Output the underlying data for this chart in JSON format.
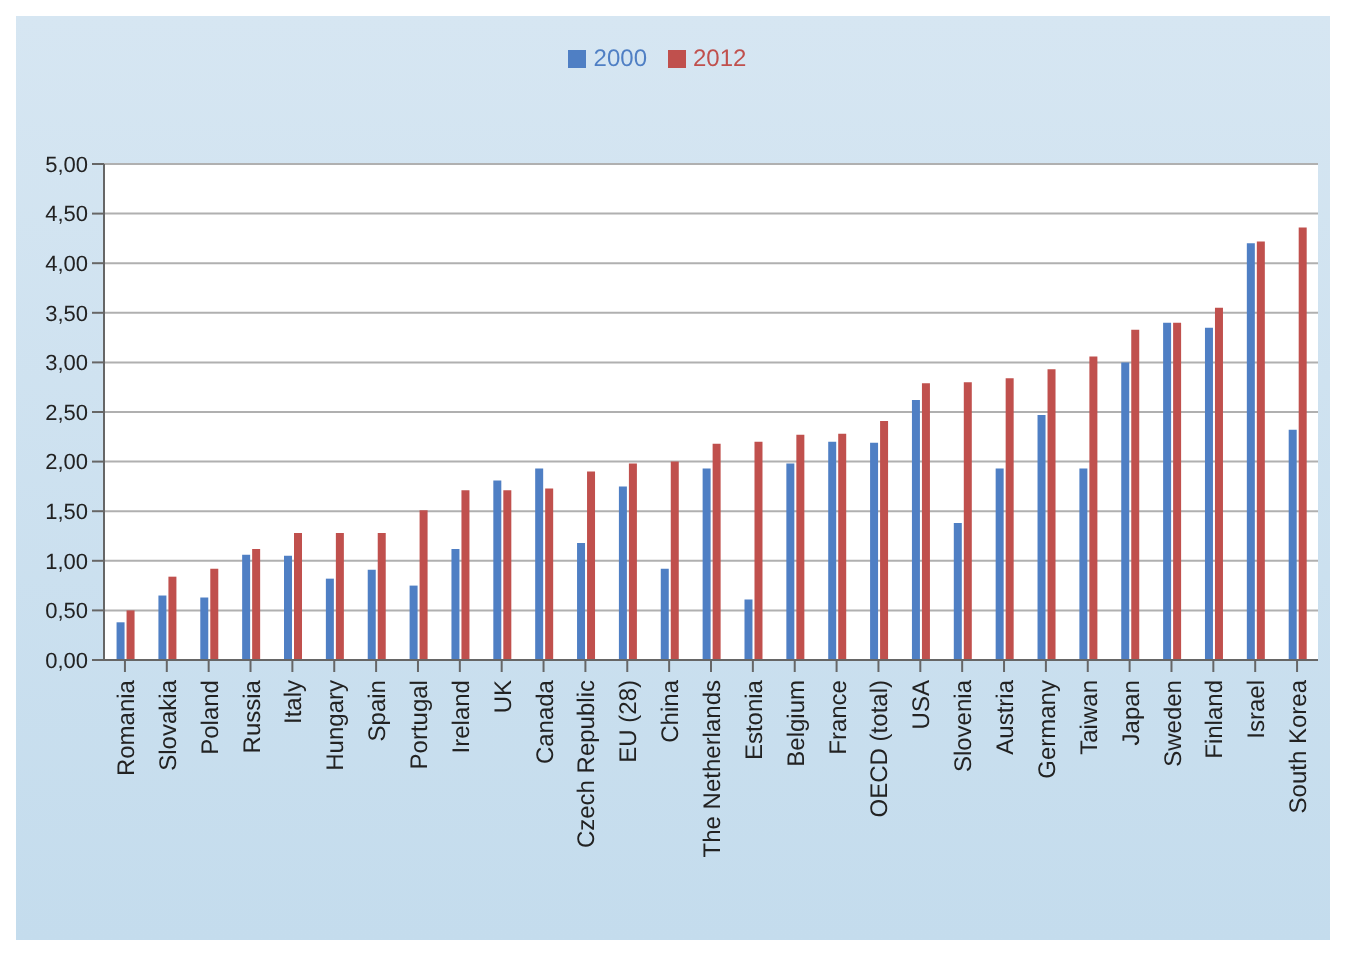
{
  "chart_data": {
    "type": "bar",
    "categories": [
      "Romania",
      "Slovakia",
      "Poland",
      "Russia",
      "Italy",
      "Hungary",
      "Spain",
      "Portugal",
      "Ireland",
      "UK",
      "Canada",
      "Czech Republic",
      "EU (28)",
      "China",
      "The Netherlands",
      "Estonia",
      "Belgium",
      "France",
      "OECD (total)",
      "USA",
      "Slovenia",
      "Austria",
      "Germany",
      "Taiwan",
      "Japan",
      "Sweden",
      "Finland",
      "Israel",
      "South Korea"
    ],
    "series": [
      {
        "name": "2000",
        "color": "#4f7fc4",
        "values": [
          0.38,
          0.65,
          0.63,
          1.06,
          1.05,
          0.82,
          0.91,
          0.75,
          1.12,
          1.81,
          1.93,
          1.18,
          1.75,
          0.92,
          1.93,
          0.61,
          1.98,
          2.2,
          2.19,
          2.62,
          1.38,
          1.93,
          2.47,
          1.93,
          3.0,
          3.4,
          3.35,
          4.2,
          2.32
        ]
      },
      {
        "name": "2012",
        "color": "#c0504d",
        "values": [
          0.5,
          0.84,
          0.92,
          1.12,
          1.28,
          1.28,
          1.28,
          1.51,
          1.71,
          1.71,
          1.73,
          1.9,
          1.98,
          2.0,
          2.18,
          2.2,
          2.27,
          2.28,
          2.41,
          2.79,
          2.8,
          2.84,
          2.93,
          3.06,
          3.33,
          3.4,
          3.55,
          4.22,
          4.36
        ]
      }
    ],
    "ylim": [
      0,
      5
    ],
    "yticks": [
      {
        "value": 0,
        "label": "0,00"
      },
      {
        "value": 0.5,
        "label": "0,50"
      },
      {
        "value": 1,
        "label": "1,00"
      },
      {
        "value": 1.5,
        "label": "1,50"
      },
      {
        "value": 2,
        "label": "2,00"
      },
      {
        "value": 2.5,
        "label": "2,50"
      },
      {
        "value": 3,
        "label": "3,00"
      },
      {
        "value": 3.5,
        "label": "3,50"
      },
      {
        "value": 4,
        "label": "4,00"
      },
      {
        "value": 4.5,
        "label": "4,50"
      },
      {
        "value": 5,
        "label": "5,00"
      }
    ],
    "grid": "y",
    "legend": "top"
  }
}
